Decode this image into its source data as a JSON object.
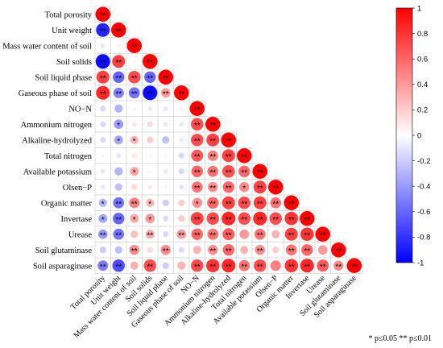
{
  "chart_data": {
    "type": "heatmap",
    "style": "lower-triangle correlation matrix with circles sized and colored by coefficient",
    "variables": [
      "Total porosity",
      "Unit weight",
      "Mass water content of soil",
      "Soil solids",
      "Soil liquid phase",
      "Gaseous phase of soil",
      "NO−N",
      "Ammonium nitrogen",
      "Alkaline-hydrolyzed",
      "Total nitrogen",
      "Available potassium",
      "Olsen−P",
      "Organic matter",
      "Invertase",
      "Urease",
      "Soil glutaminase",
      "Soil asparaginase"
    ],
    "correlations": [
      [
        1
      ],
      [
        -0.85,
        1
      ],
      [
        -0.1,
        0.05,
        1
      ],
      [
        -0.95,
        0.75,
        0.05,
        1
      ],
      [
        0.75,
        -0.6,
        0.7,
        -0.6,
        1
      ],
      [
        0.85,
        -0.5,
        -0.55,
        -0.95,
        0.4,
        1
      ],
      [
        -0.15,
        -0.3,
        0.05,
        0.1,
        -0.1,
        -0.05,
        1
      ],
      [
        -0.15,
        -0.4,
        0.1,
        0.15,
        -0.1,
        -0.1,
        0.7,
        1
      ],
      [
        -0.15,
        -0.35,
        0.3,
        0.2,
        -0.25,
        0.1,
        0.7,
        0.75,
        1
      ],
      [
        -0.05,
        -0.1,
        0.1,
        0.05,
        0.05,
        -0.15,
        0.65,
        0.5,
        0.75,
        1
      ],
      [
        -0.1,
        -0.3,
        0.35,
        0.05,
        0.1,
        -0.15,
        0.6,
        0.55,
        0.7,
        0.6,
        1
      ],
      [
        -0.1,
        -0.25,
        0.15,
        0.1,
        0.05,
        -0.1,
        0.55,
        0.45,
        0.6,
        0.45,
        0.75,
        1
      ],
      [
        -0.3,
        -0.55,
        0.5,
        0.3,
        -0.2,
        0.2,
        0.45,
        0.6,
        0.75,
        0.7,
        0.75,
        0.55,
        1
      ],
      [
        -0.35,
        -0.6,
        0.35,
        0.4,
        -0.15,
        0.2,
        0.75,
        0.7,
        0.85,
        0.7,
        0.85,
        0.7,
        0.8,
        1
      ],
      [
        -0.4,
        -0.55,
        0.25,
        0.35,
        -0.15,
        0.4,
        0.6,
        0.55,
        0.65,
        0.4,
        0.55,
        0.3,
        0.75,
        0.8,
        1
      ],
      [
        -0.2,
        -0.25,
        0.45,
        0.15,
        0.45,
        -0.15,
        0.3,
        0.45,
        0.6,
        0.3,
        0.45,
        0.2,
        0.55,
        0.6,
        0.4,
        1
      ],
      [
        -0.5,
        -0.7,
        0.3,
        0.7,
        -0.2,
        0.3,
        0.7,
        0.8,
        0.85,
        0.55,
        0.7,
        0.5,
        0.8,
        0.85,
        0.65,
        0.45,
        1
      ]
    ],
    "significance": [
      [
        "**"
      ],
      [
        "**",
        "**"
      ],
      [
        "",
        "",
        "**"
      ],
      [
        "**",
        "**",
        "",
        "**"
      ],
      [
        "**",
        "**",
        "**",
        "**",
        "**"
      ],
      [
        "**",
        "**",
        "**",
        "**",
        "**",
        "**"
      ],
      [
        "",
        "",
        "",
        "",
        "",
        "",
        "**"
      ],
      [
        "",
        "*",
        "",
        "",
        "",
        "",
        "**",
        "**"
      ],
      [
        "",
        "*",
        "*",
        "",
        "",
        "",
        "**",
        "**",
        "**"
      ],
      [
        "",
        "",
        "",
        "",
        "",
        "",
        "**",
        "**",
        "**",
        "**"
      ],
      [
        "",
        "",
        "*",
        "",
        "",
        "",
        "**",
        "**",
        "**",
        "**",
        "**"
      ],
      [
        "",
        "",
        "",
        "",
        "",
        "",
        "**",
        "**",
        "**",
        "*",
        "**",
        "**"
      ],
      [
        "*",
        "**",
        "**",
        "*",
        "",
        "",
        "*",
        "**",
        "**",
        "**",
        "**",
        "**",
        "**"
      ],
      [
        "*",
        "**",
        "*",
        "*",
        "",
        "",
        "**",
        "**",
        "**",
        "**",
        "**",
        "**",
        "**",
        "**"
      ],
      [
        "**",
        "**",
        "",
        "**",
        "",
        "**",
        "**",
        "**",
        "**",
        "",
        "**",
        "",
        "**",
        "**",
        "**"
      ],
      [
        "",
        "",
        "**",
        "",
        "**",
        "",
        "",
        "**",
        "**",
        "",
        "**",
        "",
        "**",
        "**",
        "",
        "**"
      ],
      [
        "**",
        "**",
        "",
        "**",
        "",
        "",
        "**",
        "**",
        "**",
        "**",
        "**",
        "",
        "**",
        "**",
        "**",
        "**",
        "**"
      ]
    ],
    "colorbar": {
      "range": [
        -1,
        1
      ],
      "ticks": [
        "1",
        "0.8",
        "0.6",
        "0.4",
        "0.2",
        "0",
        "-0.2",
        "-0.4",
        "-0.6",
        "-0.8",
        "-1"
      ],
      "colors": {
        "positive": "#ff0000",
        "neutral": "#ffffff",
        "negative": "#0000ff"
      },
      "placement": "right"
    },
    "footnote": "* p≤0.05  ** p≤0.01"
  }
}
